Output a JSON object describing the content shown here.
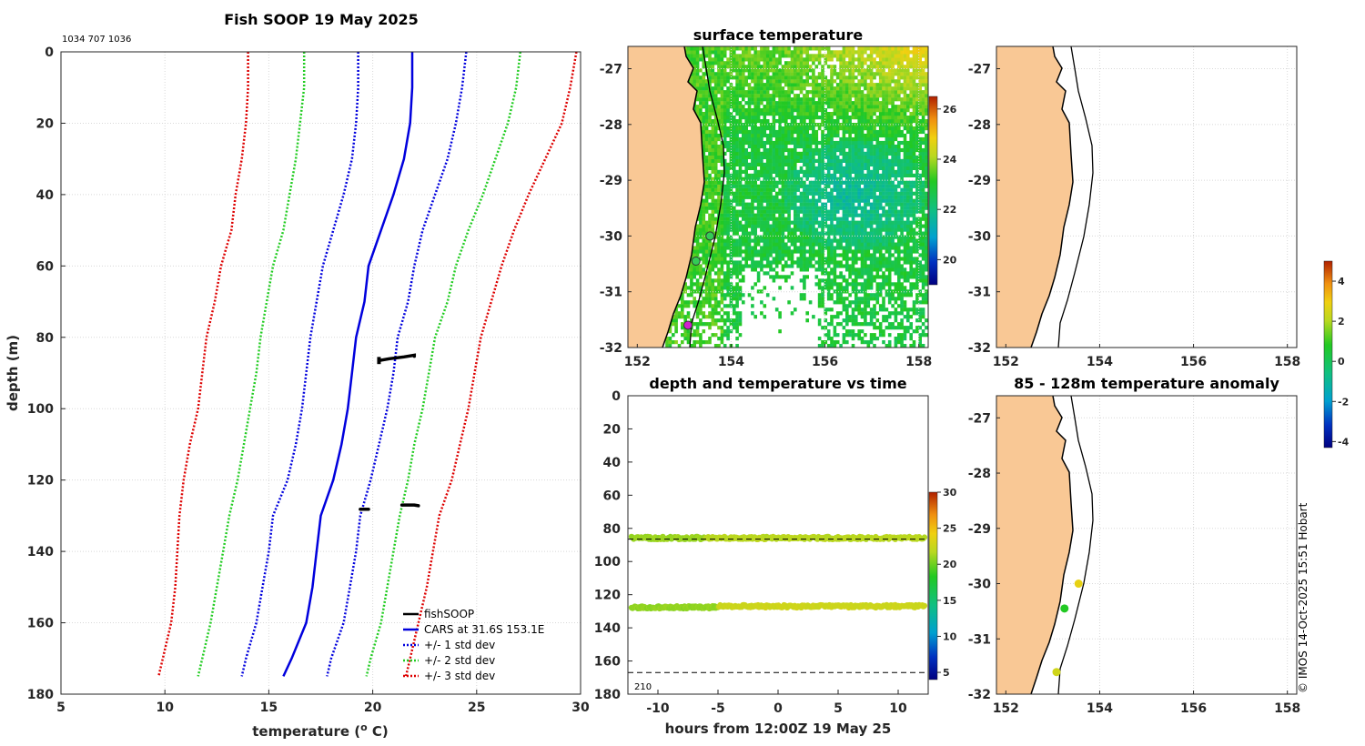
{
  "header": {
    "main_title": "Fish SOOP 19 May 2025",
    "ids": "1034 707 1036",
    "footer_credit": "© IMOS 14-Oct-2025 15:51 Hobart"
  },
  "profile": {
    "xlabel": "temperature (",
    "xlabel_sup": "o",
    "xlabel_end": " C)",
    "ylabel": "depth (m)",
    "xticks": [
      "5",
      "10",
      "15",
      "20",
      "25",
      "30"
    ],
    "yticks": [
      "0",
      "20",
      "40",
      "60",
      "80",
      "100",
      "120",
      "140",
      "160",
      "180"
    ],
    "legend": [
      {
        "label": "fishSOOP",
        "color": "#000000",
        "style": "solid"
      },
      {
        "label": "CARS at 31.6S 153.1E",
        "color": "#0000dd",
        "style": "solid"
      },
      {
        "label": "+/- 1 std dev",
        "color": "#0000dd",
        "style": "dotted"
      },
      {
        "label": "+/- 2 std dev",
        "color": "#22cc22",
        "style": "dotted"
      },
      {
        "label": "+/- 3 std dev",
        "color": "#dd0000",
        "style": "dotted"
      }
    ]
  },
  "sst_map": {
    "title": "surface temperature",
    "xticks": [
      "152",
      "154",
      "156",
      "158"
    ],
    "yticks": [
      "-27",
      "-28",
      "-29",
      "-30",
      "-31",
      "-32"
    ],
    "cbar_ticks": [
      "26",
      "24",
      "22",
      "20"
    ]
  },
  "empty_map": {
    "xticks": [
      "152",
      "154",
      "156",
      "158"
    ],
    "yticks": [
      "-27",
      "-28",
      "-29",
      "-30",
      "-31",
      "-32"
    ]
  },
  "time_panel": {
    "title": "depth and temperature vs time",
    "xlabel": "hours from 12:00Z 19 May 25",
    "xticks": [
      "-10",
      "-5",
      "0",
      "5",
      "10"
    ],
    "yticks": [
      "0",
      "20",
      "40",
      "60",
      "80",
      "100",
      "120",
      "140",
      "160",
      "180"
    ],
    "cbar_ticks": [
      "30",
      "25",
      "20",
      "15",
      "10",
      "5"
    ],
    "annotation": "210"
  },
  "anomaly_map": {
    "title": "85 - 128m temperature anomaly",
    "xticks": [
      "152",
      "154",
      "156",
      "158"
    ],
    "yticks": [
      "-27",
      "-28",
      "-29",
      "-30",
      "-31",
      "-32"
    ],
    "cbar_ticks": [
      "4",
      "2",
      "0",
      "-2",
      "-4"
    ]
  },
  "chart_data": [
    {
      "type": "line",
      "title": "Fish SOOP 19 May 2025",
      "xlabel": "temperature (o C)",
      "ylabel": "depth (m)",
      "xlim": [
        5,
        30
      ],
      "ylim": [
        180,
        0
      ],
      "depths": [
        0,
        10,
        20,
        30,
        40,
        50,
        60,
        70,
        80,
        90,
        100,
        110,
        120,
        130,
        140,
        150,
        160,
        170,
        175
      ],
      "series": [
        {
          "name": "CARS at 31.6S 153.1E",
          "values": [
            21.9,
            21.9,
            21.8,
            21.5,
            21.0,
            20.4,
            19.8,
            19.6,
            19.2,
            19.0,
            18.8,
            18.5,
            18.1,
            17.5,
            17.3,
            17.1,
            16.8,
            16.1,
            15.7
          ]
        },
        {
          "name": "+1 std dev",
          "values": [
            24.5,
            24.3,
            24.0,
            23.6,
            23.0,
            22.4,
            22.0,
            21.7,
            21.2,
            21.0,
            20.7,
            20.3,
            19.9,
            19.4,
            19.2,
            18.9,
            18.6,
            18.0,
            17.8
          ]
        },
        {
          "name": "-1 std dev",
          "values": [
            19.3,
            19.3,
            19.2,
            19.0,
            18.6,
            18.1,
            17.6,
            17.3,
            17.0,
            16.8,
            16.6,
            16.3,
            15.9,
            15.2,
            15.0,
            14.7,
            14.4,
            13.9,
            13.7
          ]
        },
        {
          "name": "+2 std dev",
          "values": [
            27.1,
            26.9,
            26.5,
            25.9,
            25.3,
            24.6,
            24.0,
            23.6,
            23.0,
            22.7,
            22.4,
            22.0,
            21.7,
            21.3,
            21.0,
            20.7,
            20.4,
            19.9,
            19.7
          ]
        },
        {
          "name": "-2 std dev",
          "values": [
            16.7,
            16.7,
            16.5,
            16.3,
            16.0,
            15.7,
            15.2,
            14.9,
            14.6,
            14.4,
            14.1,
            13.8,
            13.5,
            13.1,
            12.8,
            12.5,
            12.2,
            11.8,
            11.6
          ]
        },
        {
          "name": "+3 std dev",
          "values": [
            29.8,
            29.5,
            29.1,
            28.3,
            27.5,
            26.8,
            26.2,
            25.7,
            25.2,
            24.9,
            24.6,
            24.2,
            23.8,
            23.2,
            22.9,
            22.6,
            22.2,
            21.8,
            21.6
          ]
        },
        {
          "name": "-3 std dev",
          "values": [
            14.0,
            14.0,
            13.9,
            13.7,
            13.4,
            13.2,
            12.7,
            12.4,
            12.0,
            11.8,
            11.6,
            11.2,
            10.9,
            10.7,
            10.6,
            10.5,
            10.3,
            9.9,
            9.7
          ]
        }
      ],
      "fishsoop_segments": [
        {
          "x": [
            20.3,
            20.8,
            21.5,
            22.0,
            22.0
          ],
          "y": [
            86.5,
            86.0,
            85.5,
            85.0,
            85.3
          ]
        },
        {
          "x": [
            19.4,
            19.8
          ],
          "y": [
            128.2,
            128.2
          ]
        },
        {
          "x": [
            21.4,
            22.0,
            22.2
          ],
          "y": [
            127.0,
            127.0,
            127.2
          ]
        }
      ]
    },
    {
      "type": "heatmap",
      "title": "surface temperature",
      "xlim": [
        151.8,
        158.2
      ],
      "ylim": [
        -32.0,
        -26.6
      ],
      "colorbar_range": [
        19,
        26.5
      ],
      "stations": [
        {
          "lon": 153.08,
          "lat": -31.6,
          "color": "#d020d0"
        },
        {
          "lon": 153.25,
          "lat": -30.45,
          "color": "#33cc55"
        },
        {
          "lon": 153.55,
          "lat": -30.0,
          "color": "#33cc55"
        }
      ]
    },
    {
      "type": "scatter",
      "title": "depth and temperature vs time",
      "xlabel": "hours from 12:00Z 19 May 25",
      "xlim": [
        -12.5,
        12.5
      ],
      "ylim": [
        180,
        0
      ],
      "colorbar_range": [
        4,
        30
      ],
      "reference_depths": [
        86.5,
        167
      ],
      "tracks": [
        {
          "depth": 85.8,
          "temp": 21.8
        },
        {
          "depth": 127.0,
          "temp": 22.0
        }
      ]
    },
    {
      "type": "scatter",
      "title": "85 - 128m temperature anomaly",
      "xlim": [
        151.8,
        158.2
      ],
      "ylim": [
        -32.0,
        -26.6
      ],
      "colorbar_range": [
        -4.3,
        5
      ],
      "points": [
        {
          "lon": 153.55,
          "lat": -30.0,
          "anomaly": 2.8
        },
        {
          "lon": 153.25,
          "lat": -30.45,
          "anomaly": 0.8
        },
        {
          "lon": 153.08,
          "lat": -31.6,
          "anomaly": 2.4
        }
      ]
    }
  ]
}
